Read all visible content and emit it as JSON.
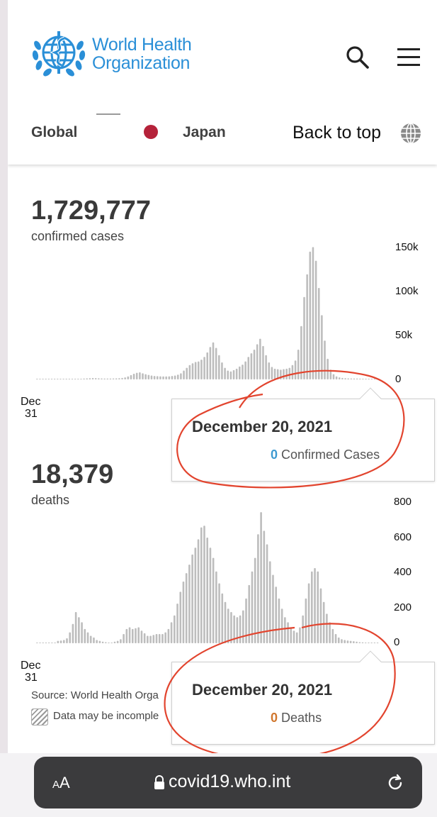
{
  "header": {
    "logo_line1": "World Health",
    "logo_line2": "Organization"
  },
  "nav": {
    "global": "Global",
    "country": "Japan",
    "back_to_top": "Back to top"
  },
  "colors": {
    "who_blue": "#2a8fd7",
    "flag_red": "#b5223a",
    "bar_gray": "#bdbdbd",
    "value_blue": "#3d9ad1",
    "value_orange": "#d0762d",
    "annotation_red": "#e2442e"
  },
  "icons": {
    "search": "search-icon",
    "menu": "hamburger-menu-icon",
    "globe": "globe-icon",
    "lock": "lock-icon",
    "reload": "reload-icon"
  },
  "cases": {
    "total": "1,729,777",
    "label": "confirmed cases",
    "x_start_month": "Dec",
    "x_start_day": "31",
    "tooltip_date": "December 20, 2021",
    "tooltip_value": "0",
    "tooltip_label": "Confirmed Cases"
  },
  "deaths": {
    "total": "18,379",
    "label": "deaths",
    "x_start_month": "Dec",
    "x_start_day": "31",
    "tooltip_date": "December 20, 2021",
    "tooltip_value": "0",
    "tooltip_label": "Deaths"
  },
  "footer": {
    "source": "Source: World Health Orga",
    "incomplete": "Data may be incomple"
  },
  "browser": {
    "aa_small": "A",
    "aa_big": "A",
    "url": "covid19.who.int"
  },
  "chart_data": [
    {
      "type": "bar",
      "title": "",
      "yticks": [
        "0",
        "50k",
        "100k",
        "150k"
      ],
      "ylim": [
        0,
        150000
      ],
      "values": [
        0,
        0,
        0,
        0,
        0,
        0,
        0,
        0,
        0,
        0,
        0,
        0,
        0,
        0,
        0,
        0,
        200,
        400,
        600,
        800,
        700,
        500,
        300,
        200,
        200,
        200,
        300,
        400,
        600,
        900,
        1500,
        2500,
        4000,
        5500,
        6500,
        7000,
        6000,
        5000,
        4200,
        3500,
        3000,
        2800,
        2600,
        2500,
        2500,
        2600,
        3000,
        3500,
        4500,
        6000,
        9000,
        12000,
        15000,
        17000,
        18500,
        19000,
        21000,
        24000,
        29000,
        35000,
        40000,
        34000,
        26000,
        18000,
        12000,
        9000,
        8000,
        9500,
        11000,
        13500,
        15500,
        19000,
        24000,
        28000,
        32000,
        38000,
        44000,
        36000,
        26000,
        18000,
        13000,
        11000,
        10500,
        10000,
        10500,
        11000,
        12000,
        15000,
        20000,
        32000,
        58000,
        90000,
        115000,
        140000,
        145000,
        130000,
        100000,
        70000,
        42000,
        22000,
        10000,
        5000,
        2500,
        1500,
        900,
        600,
        400,
        300,
        200,
        150,
        100,
        0,
        0,
        0,
        0,
        0,
        0
      ],
      "tooltip": {
        "date": "December 20, 2021",
        "value": 0,
        "label": "Confirmed Cases"
      }
    },
    {
      "type": "bar",
      "title": "",
      "yticks": [
        "0",
        "200",
        "400",
        "600",
        "800"
      ],
      "ylim": [
        0,
        800
      ],
      "values": [
        0,
        0,
        0,
        0,
        0,
        0,
        0,
        10,
        12,
        15,
        25,
        60,
        110,
        180,
        150,
        120,
        80,
        60,
        40,
        30,
        15,
        10,
        5,
        2,
        0,
        0,
        5,
        10,
        20,
        50,
        80,
        90,
        80,
        85,
        90,
        70,
        55,
        40,
        40,
        45,
        50,
        50,
        50,
        60,
        80,
        120,
        160,
        230,
        300,
        360,
        410,
        460,
        520,
        560,
        610,
        680,
        690,
        620,
        560,
        500,
        420,
        350,
        290,
        240,
        200,
        180,
        160,
        150,
        160,
        190,
        260,
        340,
        420,
        500,
        640,
        770,
        660,
        580,
        480,
        400,
        330,
        260,
        200,
        150,
        120,
        90,
        70,
        60,
        90,
        160,
        260,
        350,
        420,
        440,
        420,
        320,
        240,
        170,
        120,
        80,
        50,
        30,
        20,
        15,
        12,
        10,
        8,
        5,
        2,
        1,
        0,
        0,
        0,
        0,
        0
      ],
      "tooltip": {
        "date": "December 20, 2021",
        "value": 0,
        "label": "Deaths"
      }
    }
  ]
}
